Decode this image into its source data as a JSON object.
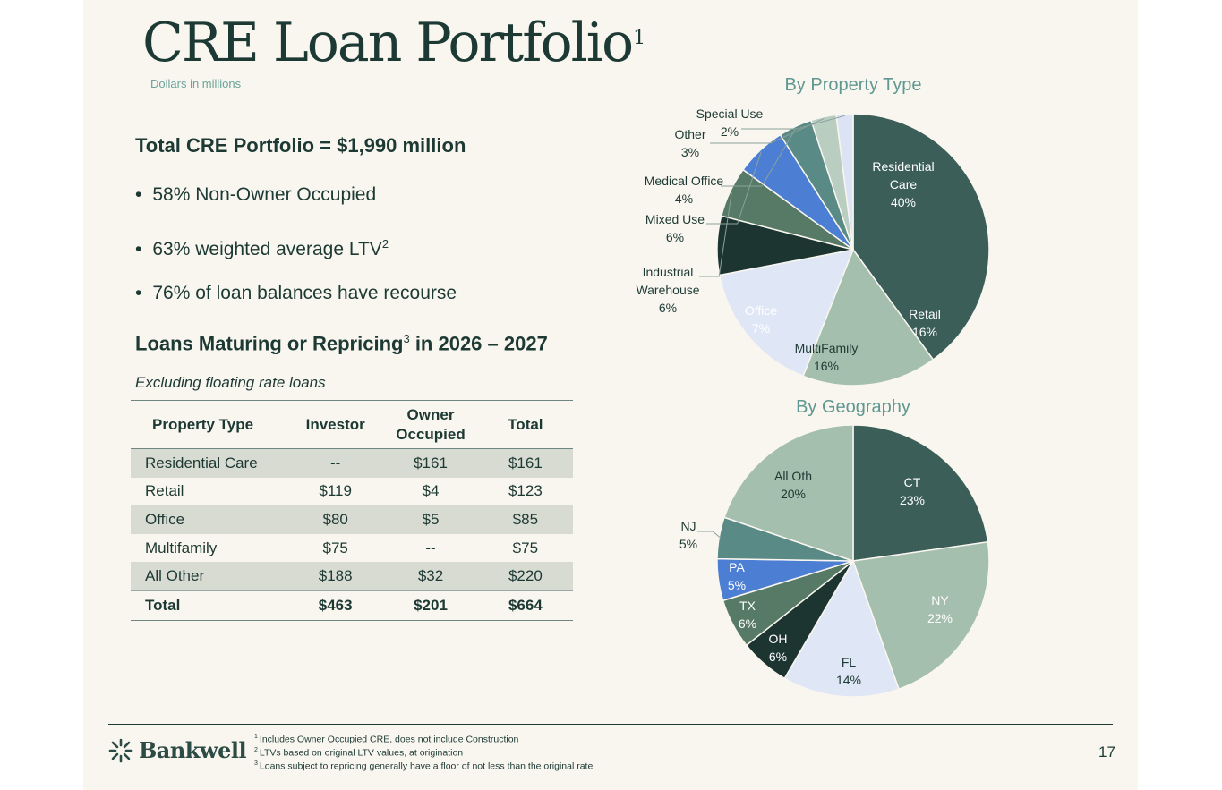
{
  "title": {
    "main": "CRE Loan Portfolio",
    "sup": "1",
    "subtitle": "Dollars in millions"
  },
  "summary": {
    "headline": "Total CRE Portfolio = $1,990 million",
    "bullets": [
      {
        "text": "58% Non-Owner Occupied",
        "sup": ""
      },
      {
        "text": "63% weighted average LTV",
        "sup": "2"
      },
      {
        "text": "76% of loan balances have recourse",
        "sup": ""
      }
    ]
  },
  "maturing": {
    "headline_pre": "Loans Maturing or Repricing",
    "headline_sup": "3",
    "headline_post": " in 2026 – 2027",
    "note": "Excluding floating rate loans"
  },
  "table": {
    "headers": [
      "Property Type",
      "Investor",
      "Owner Occupied",
      "Total"
    ],
    "rows": [
      [
        "Residential Care",
        "--",
        "$161",
        "$161"
      ],
      [
        "Retail",
        "$119",
        "$4",
        "$123"
      ],
      [
        "Office",
        "$80",
        "$5",
        "$85"
      ],
      [
        "Multifamily",
        "$75",
        "--",
        "$75"
      ],
      [
        "All Other",
        "$188",
        "$32",
        "$220"
      ]
    ],
    "total": [
      "Total",
      "$463",
      "$201",
      "$664"
    ]
  },
  "chart_data": [
    {
      "type": "pie",
      "title": "By Property Type",
      "unit": "%",
      "slices": [
        {
          "label": "Residential Care",
          "value": 40,
          "value_label": "40%",
          "color": "#3c5e58"
        },
        {
          "label": "Retail",
          "value": 16,
          "value_label": "16%",
          "color": "#a5bfae"
        },
        {
          "label": "MultiFamily",
          "value": 16,
          "value_label": "16%",
          "color": "#dfe6f5"
        },
        {
          "label": "Office",
          "value": 7,
          "value_label": "7%",
          "color": "#1d3531"
        },
        {
          "label": "Industrial Warehouse",
          "value": 6,
          "value_label": "6%",
          "color": "#567a66"
        },
        {
          "label": "Mixed Use",
          "value": 6,
          "value_label": "6%",
          "color": "#4c7fd4"
        },
        {
          "label": "Medical Office",
          "value": 4,
          "value_label": "4%",
          "color": "#598a85"
        },
        {
          "label": "Other",
          "value": 3,
          "value_label": "3%",
          "color": "#b9cdc1"
        },
        {
          "label": "Special Use",
          "value": 2,
          "value_label": "2%",
          "color": "#dce3f4"
        }
      ]
    },
    {
      "type": "pie",
      "title": "By Geography",
      "unit": "%",
      "slices": [
        {
          "label": "CT",
          "value": 23,
          "value_label": "23%",
          "color": "#3c5e58"
        },
        {
          "label": "NY",
          "value": 22,
          "value_label": "22%",
          "color": "#a5bfae"
        },
        {
          "label": "FL",
          "value": 14,
          "value_label": "14%",
          "color": "#dfe6f5"
        },
        {
          "label": "OH",
          "value": 6,
          "value_label": "6%",
          "color": "#1d3531"
        },
        {
          "label": "TX",
          "value": 6,
          "value_label": "6%",
          "color": "#567a66"
        },
        {
          "label": "PA",
          "value": 5,
          "value_label": "5%",
          "color": "#4c7fd4"
        },
        {
          "label": "NJ",
          "value": 5,
          "value_label": "5%",
          "color": "#598a85"
        },
        {
          "label": "All Oth",
          "value": 20,
          "value_label": "20%",
          "color": "#a5bfae"
        }
      ]
    }
  ],
  "chart_style": {
    "title_color": "#5f9791",
    "label_dark": "#1d3934",
    "label_light": "#ffffff",
    "slice_border": "#f9f6f0"
  },
  "footer": {
    "brand": "Bankwell",
    "footnotes": [
      {
        "n": "1",
        "text": "Includes Owner Occupied CRE, does not include Construction"
      },
      {
        "n": "2",
        "text": "LTVs based on original LTV values, at origination"
      },
      {
        "n": "3",
        "text": "Loans subject to repricing generally have a floor of not less than the original rate"
      }
    ],
    "page_number": "17"
  }
}
